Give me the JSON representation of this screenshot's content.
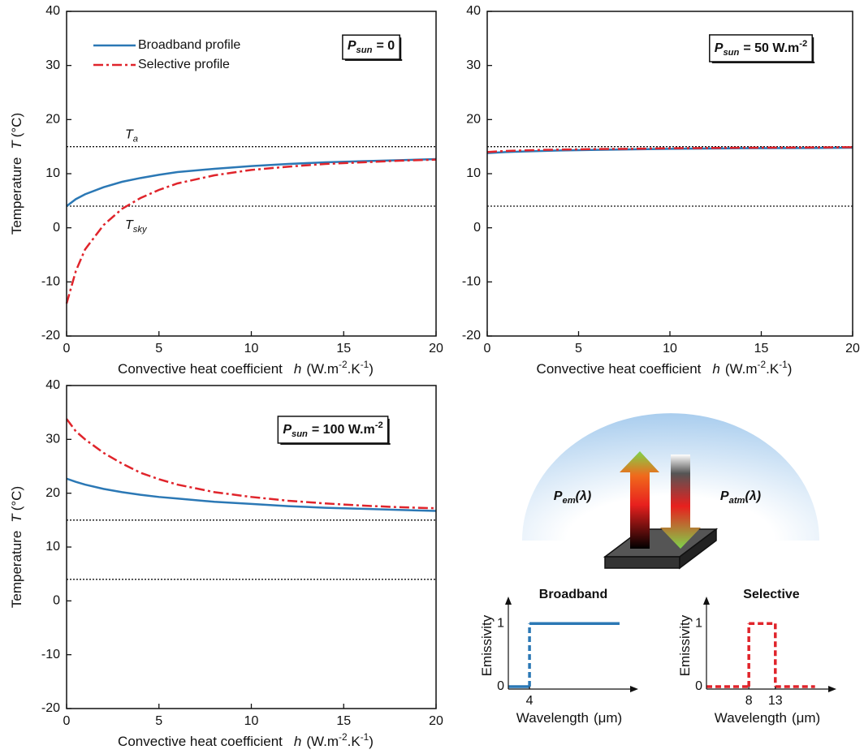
{
  "chart_data": [
    {
      "type": "line",
      "frame": true,
      "legend": "upper left",
      "x": [
        0,
        0.5,
        1,
        2,
        3,
        4,
        5,
        6,
        8,
        10,
        12,
        14,
        16,
        18,
        20
      ],
      "series": [
        {
          "name": "Broadband profile",
          "color": "#2b78b5",
          "dash": "solid",
          "values": [
            4.0,
            5.3,
            6.2,
            7.5,
            8.5,
            9.2,
            9.8,
            10.3,
            10.9,
            11.4,
            11.8,
            12.1,
            12.3,
            12.5,
            12.7
          ]
        },
        {
          "name": "Selective profile",
          "color": "#e0242b",
          "dash": "dashdot",
          "values": [
            -14,
            -8,
            -4,
            0.5,
            3.5,
            5.5,
            7,
            8.2,
            9.7,
            10.7,
            11.3,
            11.8,
            12.1,
            12.4,
            12.6
          ]
        }
      ],
      "reference_lines": [
        {
          "value": 15,
          "label": {
            "symbol": "T",
            "subscript": "a"
          }
        },
        {
          "value": 4,
          "label": {
            "symbol": "T",
            "subscript": "sky"
          }
        }
      ],
      "annotation": {
        "symbol": "P",
        "subscript": "sun",
        "text": "= 0"
      },
      "xlim": [
        0,
        20
      ],
      "xticks": [
        0,
        5,
        10,
        15,
        20
      ],
      "ylim": [
        -20,
        40
      ],
      "yticks": [
        -20,
        -10,
        0,
        10,
        20,
        30,
        40
      ],
      "x_label": {
        "text": "Convective heat coefficient",
        "symbol": "h",
        "unit": [
          "(W.m",
          "-2",
          ".K",
          "-1",
          ")"
        ]
      },
      "y_label": {
        "text": "Temperature",
        "symbol": "T",
        "unit": [
          "(°C)"
        ]
      }
    },
    {
      "type": "line",
      "frame": true,
      "x": [
        0,
        0.5,
        1,
        2,
        3,
        4,
        5,
        6,
        8,
        10,
        12,
        14,
        16,
        18,
        20
      ],
      "series": [
        {
          "color": "#2b78b5",
          "dash": "solid",
          "values": [
            13.8,
            13.9,
            14.0,
            14.1,
            14.2,
            14.3,
            14.35,
            14.4,
            14.5,
            14.6,
            14.65,
            14.7,
            14.72,
            14.75,
            14.8
          ]
        },
        {
          "color": "#e0242b",
          "dash": "dashdot",
          "values": [
            14.0,
            14.1,
            14.2,
            14.3,
            14.4,
            14.45,
            14.5,
            14.55,
            14.6,
            14.7,
            14.75,
            14.8,
            14.82,
            14.85,
            14.9
          ]
        }
      ],
      "reference_lines": [
        {
          "value": 15
        },
        {
          "value": 4
        }
      ],
      "annotation": {
        "symbol": "P",
        "subscript": "sun",
        "text": "= 50 W.m",
        "superscript": "-2"
      },
      "xlim": [
        0,
        20
      ],
      "xticks": [
        0,
        5,
        10,
        15,
        20
      ],
      "ylim": [
        -20,
        40
      ],
      "yticks": [
        -20,
        -10,
        0,
        10,
        20,
        30,
        40
      ],
      "x_label": {
        "text": "Convective heat coefficient",
        "symbol": "h",
        "unit": [
          "(W.m",
          "-2",
          ".K",
          "-1",
          ")"
        ]
      }
    },
    {
      "type": "line",
      "frame": true,
      "x": [
        0,
        0.5,
        1,
        2,
        3,
        4,
        5,
        6,
        8,
        10,
        12,
        14,
        16,
        18,
        20
      ],
      "series": [
        {
          "color": "#2b78b5",
          "dash": "solid",
          "values": [
            22.7,
            22.1,
            21.6,
            20.8,
            20.2,
            19.7,
            19.3,
            19.0,
            18.4,
            18.0,
            17.6,
            17.3,
            17.1,
            16.9,
            16.7
          ]
        },
        {
          "color": "#e0242b",
          "dash": "dashdot",
          "values": [
            33.8,
            31.5,
            30.0,
            27.5,
            25.5,
            23.8,
            22.6,
            21.6,
            20.2,
            19.3,
            18.6,
            18.1,
            17.7,
            17.4,
            17.2
          ]
        }
      ],
      "reference_lines": [
        {
          "value": 15
        },
        {
          "value": 4
        }
      ],
      "annotation": {
        "symbol": "P",
        "subscript": "sun",
        "text": "= 100 W.m",
        "superscript": "-2"
      },
      "xlim": [
        0,
        20
      ],
      "xticks": [
        0,
        5,
        10,
        15,
        20
      ],
      "ylim": [
        -20,
        40
      ],
      "yticks": [
        -20,
        -10,
        0,
        10,
        20,
        30,
        40
      ],
      "x_label": {
        "text": "Convective heat coefficient",
        "symbol": "h",
        "unit": [
          "(W.m",
          "-2",
          ".K",
          "-1",
          ")"
        ]
      },
      "y_label": {
        "text": "Temperature",
        "symbol": "T",
        "unit": [
          "(°C)"
        ]
      }
    },
    {
      "type": "line",
      "frame": false,
      "title": "Broadband",
      "x": [
        0,
        4,
        4,
        21
      ],
      "series": [
        {
          "color": "#2b78b5",
          "dash": "solid",
          "values": [
            0,
            0,
            1,
            1
          ]
        }
      ],
      "xlim": [
        0,
        23
      ],
      "xticks": [
        4
      ],
      "ylim": [
        0,
        1.3
      ],
      "yticks": [
        0,
        1
      ],
      "x_label": {
        "text": "Wavelength",
        "unit": [
          "(μm)"
        ]
      },
      "y_label": {
        "text": "Emissivity"
      }
    },
    {
      "type": "line",
      "frame": false,
      "title": "Selective",
      "x": [
        0,
        8,
        8,
        13,
        13,
        20.5
      ],
      "series": [
        {
          "color": "#e0242b",
          "dash": "dashed",
          "values": [
            0,
            0,
            1,
            1,
            0,
            0
          ]
        }
      ],
      "xlim": [
        0,
        23
      ],
      "xticks": [
        8,
        13
      ],
      "ylim": [
        0,
        1.3
      ],
      "yticks": [
        0,
        1
      ],
      "x_label": {
        "text": "Wavelength",
        "unit": [
          "(μm)"
        ]
      },
      "y_label": {
        "text": "Emissivity"
      }
    }
  ],
  "diagram": {
    "emitted": {
      "symbol": "P",
      "subscript": "em",
      "text": "(λ)"
    },
    "atmospheric": {
      "symbol": "P",
      "subscript": "atm",
      "text": "(λ)"
    }
  }
}
